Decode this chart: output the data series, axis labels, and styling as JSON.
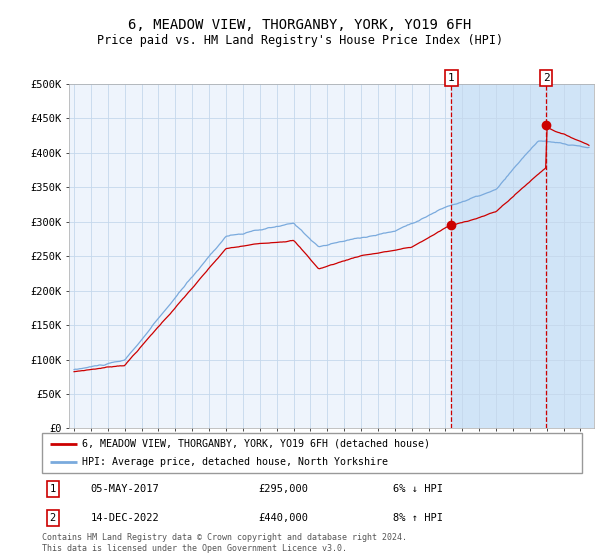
{
  "title": "6, MEADOW VIEW, THORGANBY, YORK, YO19 6FH",
  "subtitle": "Price paid vs. HM Land Registry's House Price Index (HPI)",
  "ylim": [
    0,
    500000
  ],
  "yticks": [
    0,
    50000,
    100000,
    150000,
    200000,
    250000,
    300000,
    350000,
    400000,
    450000,
    500000
  ],
  "hpi_color": "#7aaadd",
  "price_color": "#cc0000",
  "bg_color_main": "#eef4fc",
  "bg_color_highlight": "#d0e4f7",
  "grid_color": "#c5d8ec",
  "sale1_date": "05-MAY-2017",
  "sale1_price": 295000,
  "sale1_pct": "6% ↓ HPI",
  "sale1_year": 2017.35,
  "sale2_date": "14-DEC-2022",
  "sale2_price": 440000,
  "sale2_pct": "8% ↑ HPI",
  "sale2_year": 2022.96,
  "legend_label1": "6, MEADOW VIEW, THORGANBY, YORK, YO19 6FH (detached house)",
  "legend_label2": "HPI: Average price, detached house, North Yorkshire",
  "footnote": "Contains HM Land Registry data © Crown copyright and database right 2024.\nThis data is licensed under the Open Government Licence v3.0.",
  "xmin": 1994.7,
  "xmax": 2025.8
}
